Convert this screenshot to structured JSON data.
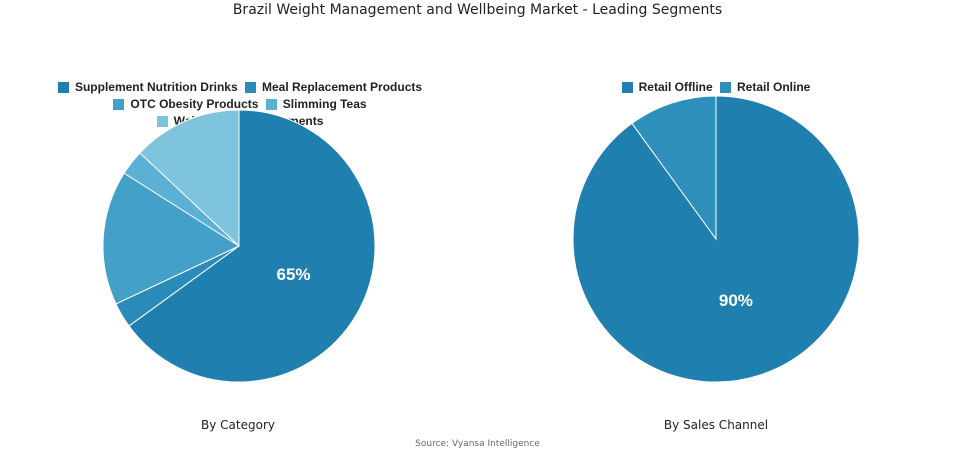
{
  "chart_data": [
    {
      "type": "pie",
      "title": "Brazil Weight Management and Wellbeing Market - Leading Segments",
      "subtitle": "By Category",
      "categories": [
        "Supplement Nutrition Drinks",
        "Meal Replacement Products",
        "OTC Obesity Products",
        "Slimming Teas",
        "Weight Loss Supplements"
      ],
      "values": [
        65,
        3,
        16,
        3,
        13
      ],
      "colors": [
        "#1f7fae",
        "#2a8bb8",
        "#43a0c8",
        "#5bb1d4",
        "#7ec4dd"
      ],
      "labels": [
        "65%",
        "",
        "",
        "",
        ""
      ],
      "legend": "top"
    },
    {
      "type": "pie",
      "subtitle": "By Sales Channel",
      "categories": [
        "Retail Offline",
        "Retail Online"
      ],
      "values": [
        90,
        10
      ],
      "colors": [
        "#1f7fae",
        "#2e8fba"
      ],
      "labels": [
        "90%",
        ""
      ],
      "legend": "top"
    }
  ],
  "source": "Source: Vyansa Intelligence"
}
